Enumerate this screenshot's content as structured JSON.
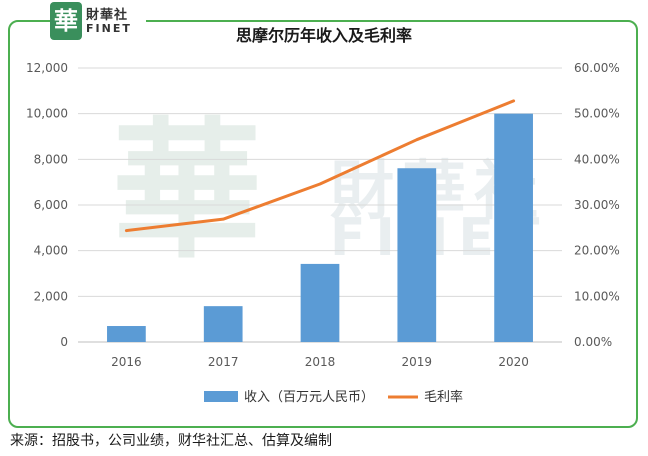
{
  "branding": {
    "seal_char": "華",
    "name_cn": "財華社",
    "name_en": "FINET"
  },
  "watermark": {
    "seal_char": "華",
    "text_cn": "財華社",
    "text_en": "FINET"
  },
  "source_note": "来源：招股书，公司业绩，财华社汇总、估算及编制",
  "colors": {
    "bar": "#5b9bd5",
    "line": "#ed7d31",
    "frame": "#4caf50"
  },
  "chart_data": {
    "type": "bar",
    "title": "思摩尔历年收入及毛利率",
    "categories": [
      "2016",
      "2017",
      "2018",
      "2019",
      "2020"
    ],
    "series": [
      {
        "name": "收入（百万元人民币）",
        "type": "bar",
        "axis": "left",
        "values": [
          700,
          1570,
          3420,
          7610,
          10000
        ]
      },
      {
        "name": "毛利率",
        "type": "line",
        "axis": "right",
        "values": [
          24.4,
          26.9,
          34.6,
          44.3,
          52.8
        ]
      }
    ],
    "y_left": {
      "min": 0,
      "max": 12000,
      "ticks": [
        "0",
        "2,000",
        "4,000",
        "6,000",
        "8,000",
        "10,000",
        "12,000"
      ]
    },
    "y_right": {
      "min": 0,
      "max": 60,
      "ticks": [
        "0.00%",
        "10.00%",
        "20.00%",
        "30.00%",
        "40.00%",
        "50.00%",
        "60.00%"
      ]
    },
    "grid": true,
    "legend_position": "bottom"
  }
}
